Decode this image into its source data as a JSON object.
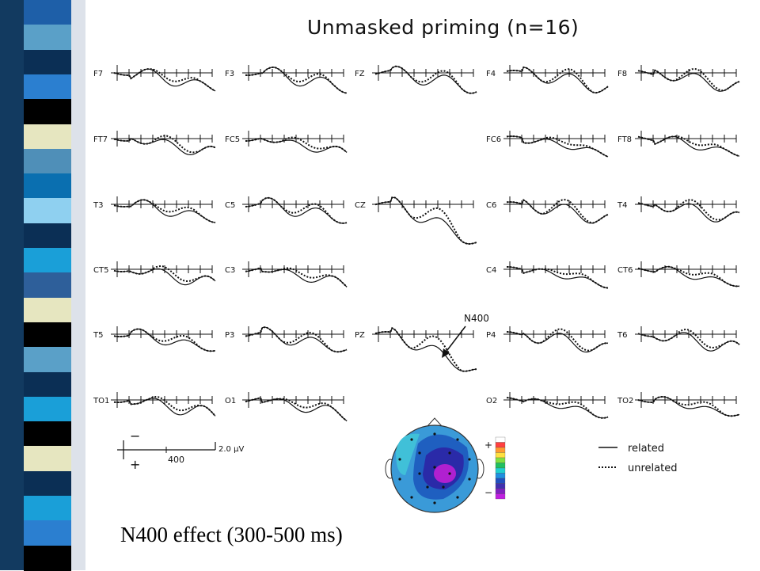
{
  "slide": {
    "title": "Unmasked priming (n=16)",
    "caption": "N400 effect (300-500 ms)",
    "annotation": "N400"
  },
  "electrodes": [
    [
      "F7",
      "F3",
      "FZ",
      "F4",
      "F8"
    ],
    [
      "FT7",
      "FC5",
      "",
      "FC6",
      "FT8"
    ],
    [
      "T3",
      "C5",
      "CZ",
      "C6",
      "T4"
    ],
    [
      "CT5",
      "C3",
      "",
      "C4",
      "CT6"
    ],
    [
      "T5",
      "P3",
      "PZ",
      "P4",
      "T6"
    ],
    [
      "TO1",
      "O1",
      "",
      "O2",
      "TO2"
    ]
  ],
  "scale": {
    "amplitude_label": "2.0 µV",
    "time_label": "400",
    "minus": "−",
    "plus": "+"
  },
  "legend": [
    {
      "name": "related",
      "style": "solid"
    },
    {
      "name": "unrelated",
      "style": "dotted"
    }
  ],
  "topomap_scale_signs": {
    "top": "+",
    "bottom": "−"
  },
  "colors": {
    "stripe": [
      "#1e5fa8",
      "#5aa0c8",
      "#0b2f55",
      "#2b7fd0",
      "#000000",
      "#e6e6c0",
      "#4f8fb8",
      "#0a6fb0",
      "#8fd0f0",
      "#0b2f55",
      "#1a9fd8",
      "#2e5f9a",
      "#e6e6c0",
      "#000000",
      "#5aa0c8",
      "#0b2f55",
      "#1a9fd8",
      "#000000",
      "#e6e6c0",
      "#0b2f55",
      "#1a9fd8",
      "#2b7fd0",
      "#000000"
    ],
    "map_outer": "#3a9ad8",
    "map_mid": "#1f5fc0",
    "map_inner": "#2a2aa8",
    "map_peak": "#b020d0",
    "map_left": "#40c0d8"
  }
}
